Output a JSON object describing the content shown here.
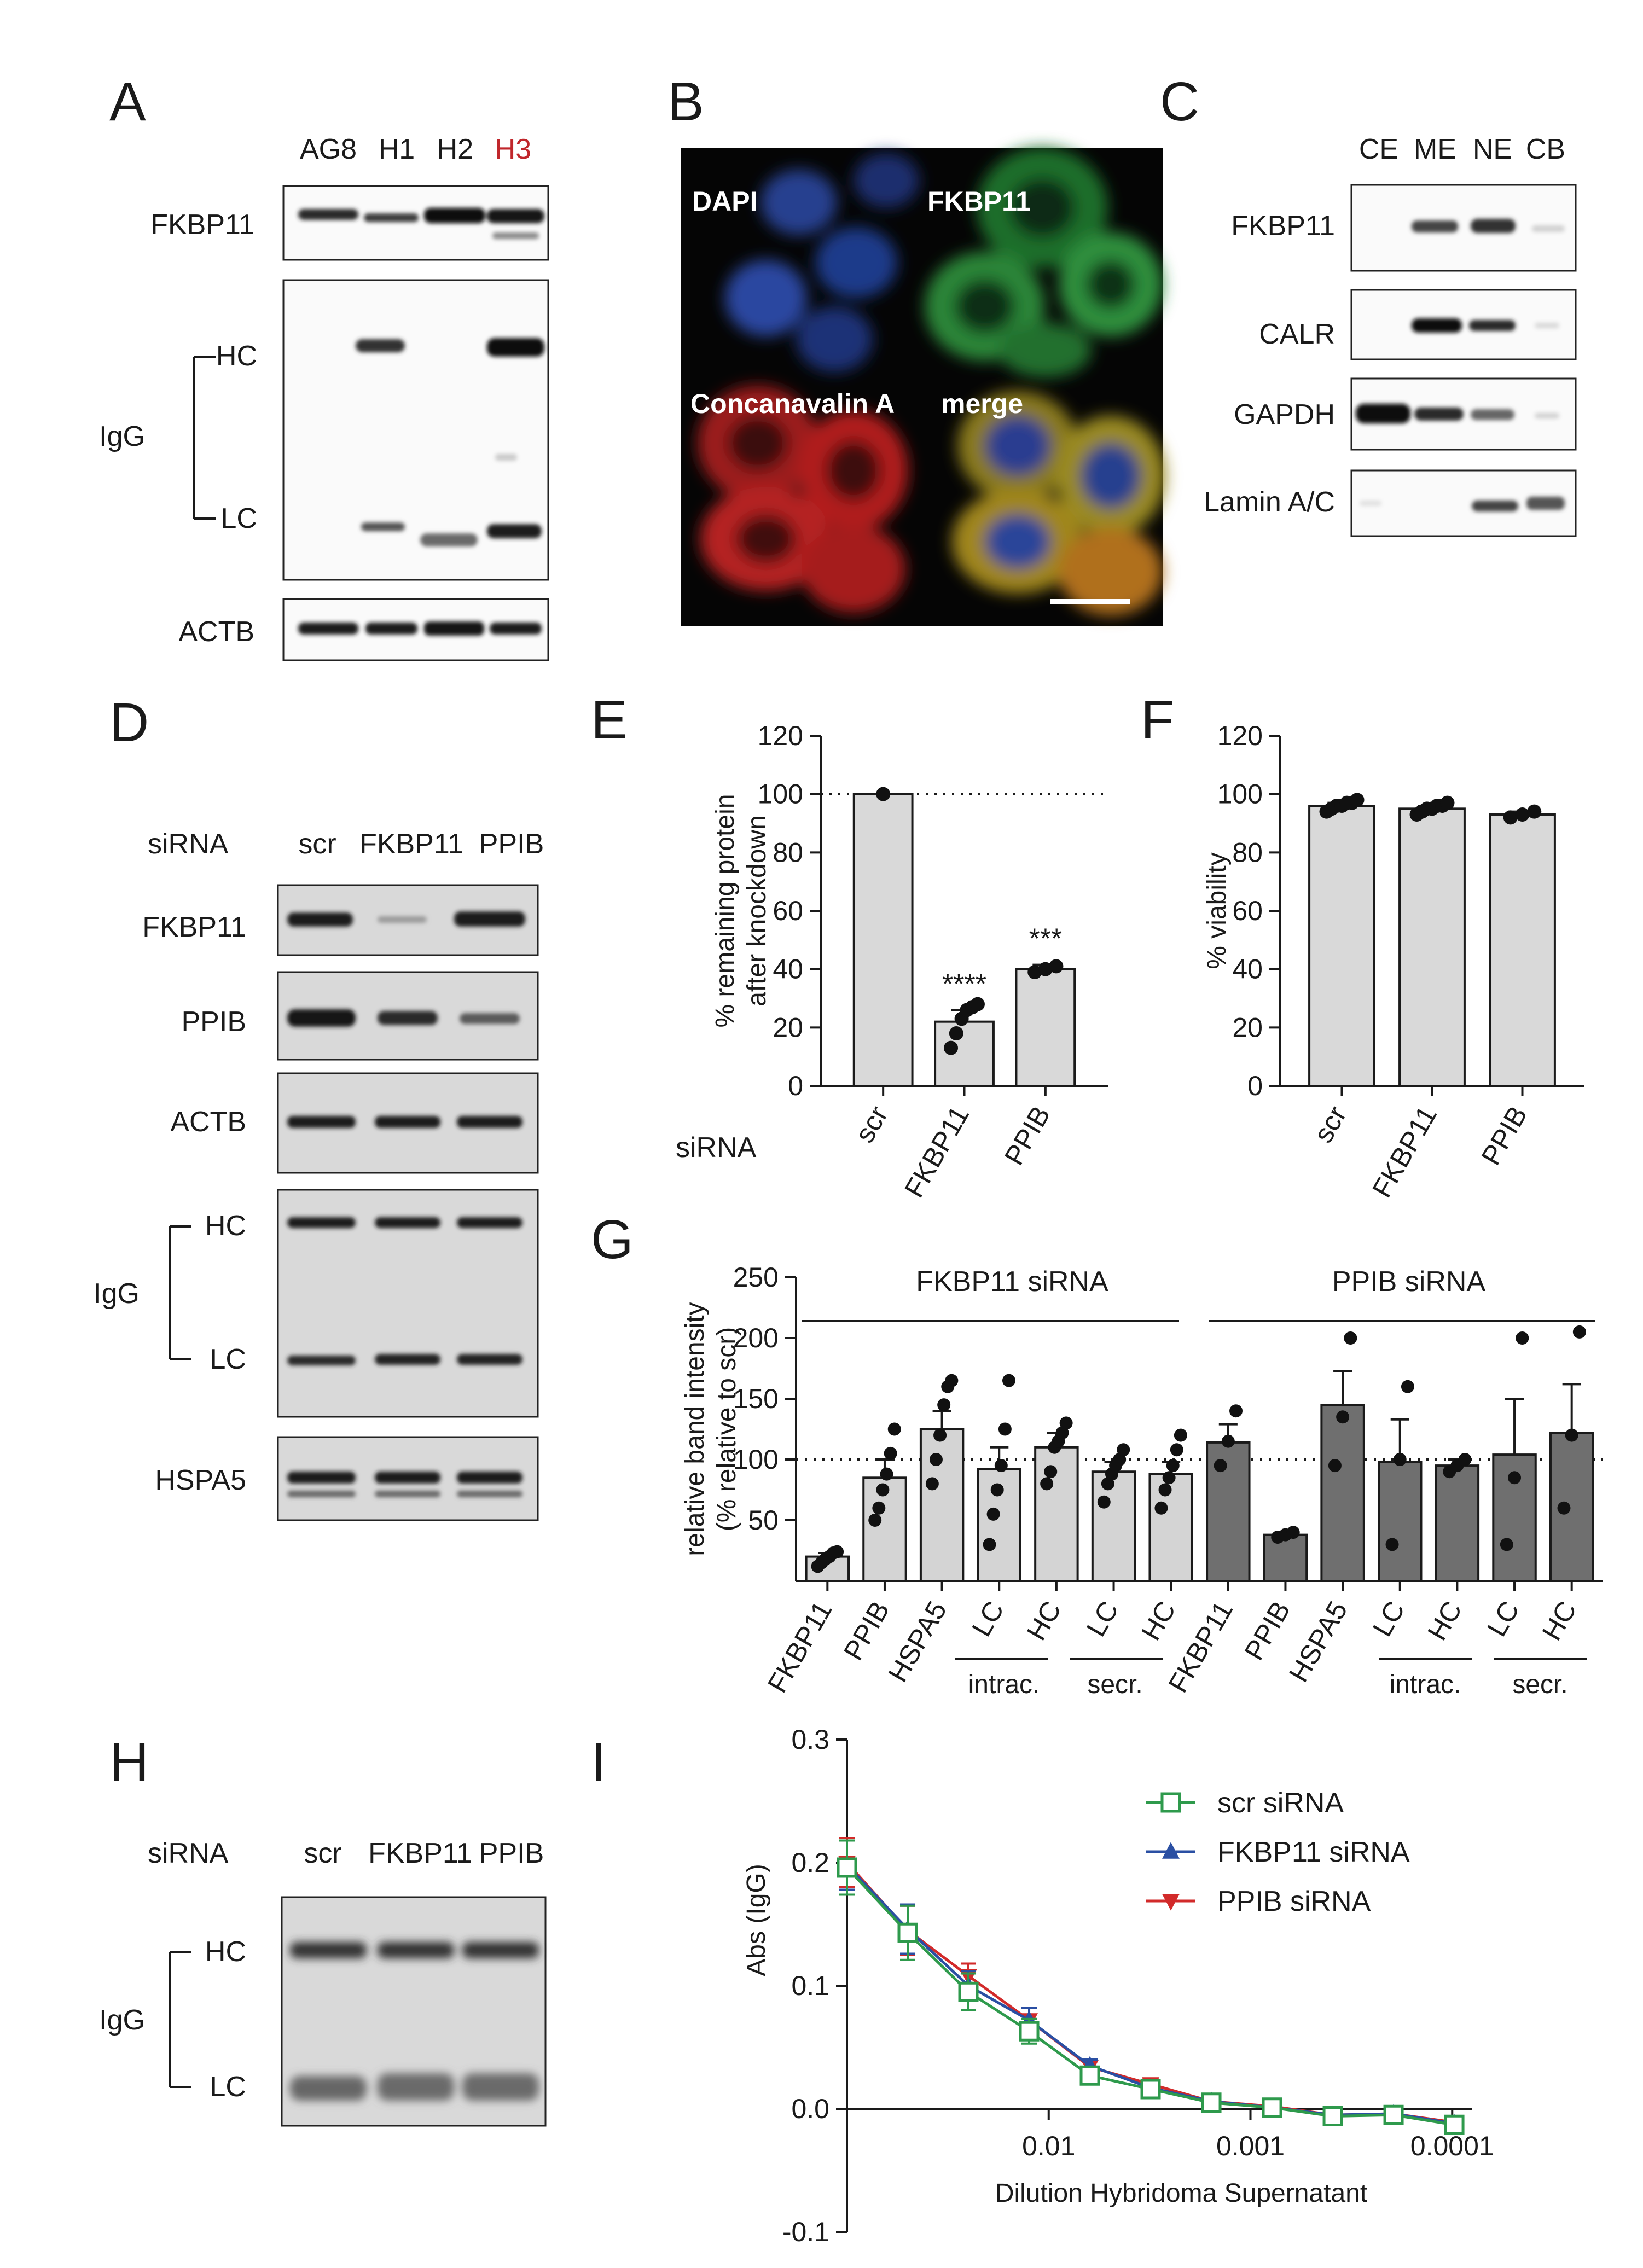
{
  "panels": {
    "A": {
      "letter": "A",
      "lanes": [
        {
          "label": "AG8",
          "color": "#1a1a1a"
        },
        {
          "label": "H1",
          "color": "#1a1a1a"
        },
        {
          "label": "H2",
          "color": "#1a1a1a"
        },
        {
          "label": "H3",
          "color": "#c0262b"
        }
      ],
      "rows": {
        "fkbp11": "FKBP11",
        "igg": "IgG",
        "hc": "HC",
        "lc": "LC",
        "actb": "ACTB"
      }
    },
    "B": {
      "letter": "B",
      "quadrants": [
        "DAPI",
        "FKBP11",
        "Concanavalin A",
        "merge"
      ]
    },
    "C": {
      "letter": "C",
      "lanes": [
        "CE",
        "ME",
        "NE",
        "CB"
      ],
      "rows": [
        "FKBP11",
        "CALR",
        "GAPDH",
        "Lamin A/C"
      ]
    },
    "D": {
      "letter": "D",
      "sirna": "siRNA",
      "lanes": [
        "scr",
        "FKBP11",
        "PPIB"
      ],
      "rows": {
        "fkbp11": "FKBP11",
        "ppib": "PPIB",
        "actb": "ACTB",
        "igg": "IgG",
        "hc": "HC",
        "lc": "LC",
        "hspa5": "HSPA5"
      }
    },
    "H": {
      "letter": "H",
      "sirna": "siRNA",
      "lanes": [
        "scr",
        "FKBP11",
        "PPIB"
      ],
      "rows": {
        "igg": "IgG",
        "hc": "HC",
        "lc": "LC"
      }
    },
    "E": {
      "letter": "E",
      "sirna": "siRNA"
    },
    "F": {
      "letter": "F"
    },
    "G": {
      "letter": "G",
      "group_labels": [
        "FKBP11 siRNA",
        "PPIB siRNA"
      ],
      "sub_labels": [
        "intrac.",
        "secr.",
        "intrac.",
        "secr."
      ]
    },
    "I": {
      "letter": "I"
    }
  },
  "chart_data": [
    {
      "panel": "E",
      "type": "bar",
      "categories": [
        "scr",
        "FKBP11",
        "PPIB"
      ],
      "values": [
        100,
        22,
        40
      ],
      "errors": [
        0,
        4,
        1.5
      ],
      "points": [
        [
          100
        ],
        [
          13,
          18,
          23,
          26,
          27,
          28
        ],
        [
          39,
          40,
          41
        ]
      ],
      "significance": [
        "",
        "****",
        "***"
      ],
      "ylabel": "% remaining protein\nafter knockdown",
      "ylim": [
        0,
        120
      ],
      "yticks": [
        0,
        20,
        40,
        60,
        80,
        100,
        120
      ],
      "reference_line": 100,
      "bar_color": "#d9d9d9"
    },
    {
      "panel": "F",
      "type": "bar",
      "categories": [
        "scr",
        "FKBP11",
        "PPIB"
      ],
      "values": [
        96,
        95,
        93
      ],
      "errors": [
        1,
        1,
        1
      ],
      "points": [
        [
          94,
          95,
          96,
          96,
          97,
          97,
          98
        ],
        [
          93,
          94,
          95,
          95,
          96,
          96,
          97
        ],
        [
          92,
          93,
          94
        ]
      ],
      "ylabel": "% viability",
      "ylim": [
        0,
        120
      ],
      "yticks": [
        0,
        20,
        40,
        60,
        80,
        100,
        120
      ],
      "bar_color": "#d9d9d9"
    },
    {
      "panel": "G",
      "type": "bar",
      "categories": [
        "FKBP11",
        "PPIB",
        "HSPA5",
        "LC",
        "HC",
        "LC",
        "HC",
        "FKBP11",
        "PPIB",
        "HSPA5",
        "LC",
        "HC",
        "LC",
        "HC"
      ],
      "values": [
        20,
        85,
        125,
        92,
        110,
        90,
        88,
        114,
        38,
        145,
        98,
        95,
        104,
        122
      ],
      "errors": [
        3,
        15,
        15,
        18,
        12,
        8,
        10,
        15,
        2,
        28,
        35,
        5,
        46,
        40
      ],
      "bar_colors": [
        "#d4d4d4",
        "#d4d4d4",
        "#d4d4d4",
        "#d4d4d4",
        "#d4d4d4",
        "#d4d4d4",
        "#d4d4d4",
        "#6f6f6f",
        "#6f6f6f",
        "#6f6f6f",
        "#6f6f6f",
        "#6f6f6f",
        "#6f6f6f",
        "#6f6f6f"
      ],
      "points": [
        [
          12,
          15,
          18,
          20,
          23,
          24
        ],
        [
          50,
          60,
          75,
          88,
          105,
          125
        ],
        [
          80,
          100,
          120,
          145,
          160,
          165
        ],
        [
          30,
          55,
          75,
          95,
          125,
          165
        ],
        [
          80,
          90,
          110,
          115,
          122,
          130
        ],
        [
          65,
          80,
          88,
          95,
          100,
          108
        ],
        [
          60,
          75,
          85,
          95,
          108,
          120
        ],
        [
          95,
          115,
          140
        ],
        [
          36,
          38,
          40
        ],
        [
          95,
          135,
          200
        ],
        [
          30,
          100,
          160
        ],
        [
          90,
          95,
          100
        ],
        [
          30,
          85,
          200
        ],
        [
          60,
          120,
          205
        ]
      ],
      "ylabel": "relative band intensity\n(% relative to scr)",
      "ylim": [
        0,
        250
      ],
      "yticks": [
        50,
        100,
        150,
        200,
        250
      ],
      "reference_line": 100
    },
    {
      "panel": "I",
      "type": "line",
      "xscale": "log",
      "x": [
        0.1,
        0.05,
        0.025,
        0.0125,
        0.00625,
        0.003125,
        0.0015625,
        0.00078125,
        0.000390625,
        0.0001953125,
        9.765625e-05
      ],
      "xticks": [
        0.01,
        0.001,
        0.0001
      ],
      "xtick_labels": [
        "0.01",
        "0.001",
        "0.0001"
      ],
      "xlabel": "Dilution Hybridoma Supernatant",
      "ylabel": "Abs (IgG)",
      "ylim": [
        -0.1,
        0.3
      ],
      "yticks": [
        -0.1,
        0.0,
        0.1,
        0.2,
        0.3
      ],
      "ytick_labels": [
        "-0.1",
        "0.0",
        "0.1",
        "0.2",
        "0.3"
      ],
      "reference_line": 0,
      "legend_position": "top-right",
      "series": [
        {
          "name": "scr siRNA",
          "color": "#2e9a4c",
          "marker": "open-square",
          "values": [
            0.196,
            0.143,
            0.095,
            0.063,
            0.027,
            0.016,
            0.005,
            0.001,
            -0.006,
            -0.005,
            -0.013
          ],
          "errors": [
            0.022,
            0.022,
            0.015,
            0.01,
            0.005,
            0.004,
            0.004,
            0.003,
            0.003,
            0.003,
            0.004
          ]
        },
        {
          "name": "FKBP11 siRNA",
          "color": "#2a4fa3",
          "marker": "triangle-up",
          "values": [
            0.198,
            0.146,
            0.1,
            0.072,
            0.035,
            0.017,
            0.006,
            0.001,
            -0.005,
            -0.004,
            -0.012
          ],
          "errors": [
            0.02,
            0.02,
            0.012,
            0.01,
            0.005,
            0.004,
            0.003,
            0.003,
            0.003,
            0.003,
            0.003
          ]
        },
        {
          "name": "PPIB siRNA",
          "color": "#d22a2a",
          "marker": "triangle-down",
          "values": [
            0.2,
            0.145,
            0.108,
            0.072,
            0.034,
            0.02,
            0.006,
            0.002,
            -0.005,
            -0.004,
            -0.011
          ],
          "errors": [
            0.02,
            0.02,
            0.01,
            0.01,
            0.005,
            0.004,
            0.003,
            0.003,
            0.003,
            0.003,
            0.003
          ]
        }
      ]
    }
  ]
}
